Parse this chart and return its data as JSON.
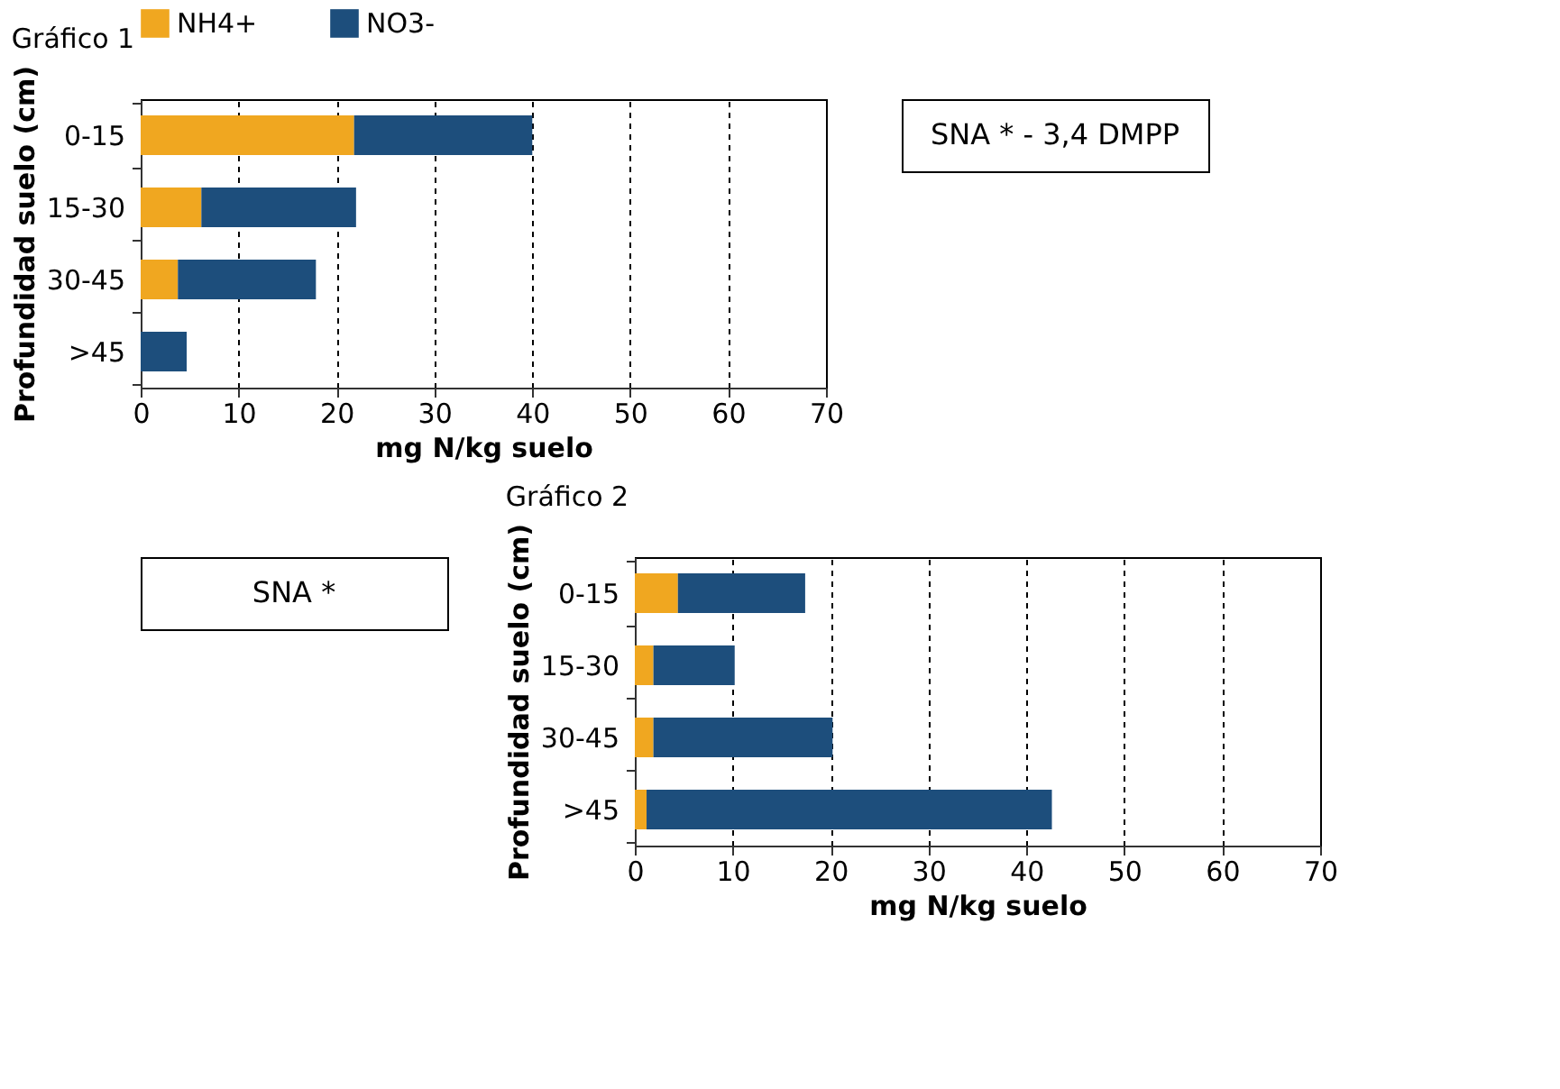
{
  "chart_data": [
    {
      "type": "bar",
      "orientation": "horizontal",
      "stacked": true,
      "title": "Gráfico 1",
      "xlabel": "mg N/kg suelo",
      "ylabel": "Profundidad  suelo (cm)",
      "categories": [
        "0-15",
        "15-30",
        "30-45",
        ">45"
      ],
      "series": [
        {
          "name": "NH4+",
          "color": "#f0a720",
          "values": [
            21.8,
            6.2,
            3.8,
            0
          ]
        },
        {
          "name": "NO3-",
          "color": "#1d4e7c",
          "values": [
            18.2,
            15.8,
            14.1,
            4.7
          ]
        }
      ],
      "xlim": [
        0,
        70
      ],
      "xticks": [
        0,
        10,
        20,
        30,
        40,
        50,
        60,
        70
      ],
      "grid": "x",
      "legend": "top",
      "annotations": [
        "SNA * - 3,4 DMPP"
      ]
    },
    {
      "type": "bar",
      "orientation": "horizontal",
      "stacked": true,
      "title": "Gráfico 2",
      "xlabel": "mg N/kg suelo",
      "ylabel": "Profundidad  suelo (cm)",
      "categories": [
        "0-15",
        "15-30",
        "30-45",
        ">45"
      ],
      "series": [
        {
          "name": "NH4+",
          "color": "#f0a720",
          "values": [
            4.4,
            1.9,
            1.9,
            1.2
          ]
        },
        {
          "name": "NO3-",
          "color": "#1d4e7c",
          "values": [
            13.0,
            8.3,
            18.3,
            41.4
          ]
        }
      ],
      "xlim": [
        0,
        70
      ],
      "xticks": [
        0,
        10,
        20,
        30,
        40,
        50,
        60,
        70
      ],
      "grid": "x",
      "legend": "top",
      "annotations": [
        "SNA *"
      ]
    }
  ]
}
